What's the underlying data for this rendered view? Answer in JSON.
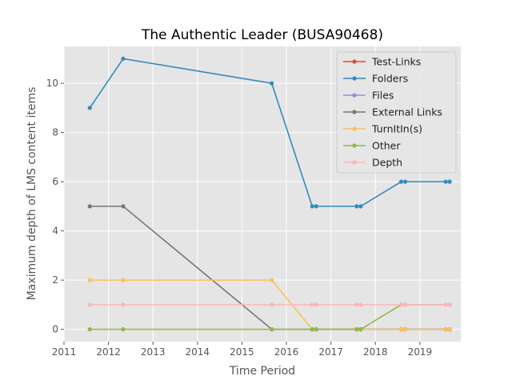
{
  "chart_data": {
    "type": "line",
    "title": "The Authentic Leader (BUSA90468)",
    "xlabel": "Time Period",
    "ylabel": "Maximum depth of LMS content items",
    "xlim": [
      2011,
      2019.92
    ],
    "ylim": [
      -0.5,
      11.5
    ],
    "x_ticks": [
      2011,
      2012,
      2013,
      2014,
      2015,
      2016,
      2017,
      2018,
      2019
    ],
    "y_ticks": [
      0,
      2,
      4,
      6,
      8,
      10
    ],
    "grid": true,
    "legend_position": "upper-right",
    "x": [
      2011.58,
      2012.33,
      2015.67,
      2016.58,
      2016.67,
      2017.58,
      2017.67,
      2018.58,
      2018.67,
      2019.58,
      2019.67
    ],
    "series": [
      {
        "name": "Test-Links",
        "color": "#E24A33",
        "values": [
          null,
          null,
          null,
          0,
          0,
          0,
          0,
          0,
          0,
          0,
          0
        ]
      },
      {
        "name": "Folders",
        "color": "#348ABD",
        "values": [
          9,
          11,
          10,
          5,
          5,
          5,
          5,
          6,
          6,
          6,
          6
        ]
      },
      {
        "name": "Files",
        "color": "#988ED5",
        "values": [
          null,
          null,
          null,
          0,
          0,
          0,
          0,
          0,
          0,
          0,
          0
        ]
      },
      {
        "name": "External Links",
        "color": "#777777",
        "values": [
          5,
          5,
          0,
          0,
          0,
          0,
          0,
          0,
          0,
          0,
          0
        ]
      },
      {
        "name": "TurnItIn(s)",
        "color": "#FBC15E",
        "values": [
          2,
          2,
          2,
          0,
          0,
          0,
          0,
          0,
          0,
          0,
          0
        ]
      },
      {
        "name": "Other",
        "color": "#8EBA42",
        "values": [
          0,
          0,
          0,
          0,
          0,
          0,
          0,
          1,
          1,
          1,
          1
        ]
      },
      {
        "name": "Depth",
        "color": "#FFB5B8",
        "values": [
          1,
          1,
          1,
          1,
          1,
          1,
          1,
          1,
          1,
          1,
          1
        ]
      }
    ]
  }
}
